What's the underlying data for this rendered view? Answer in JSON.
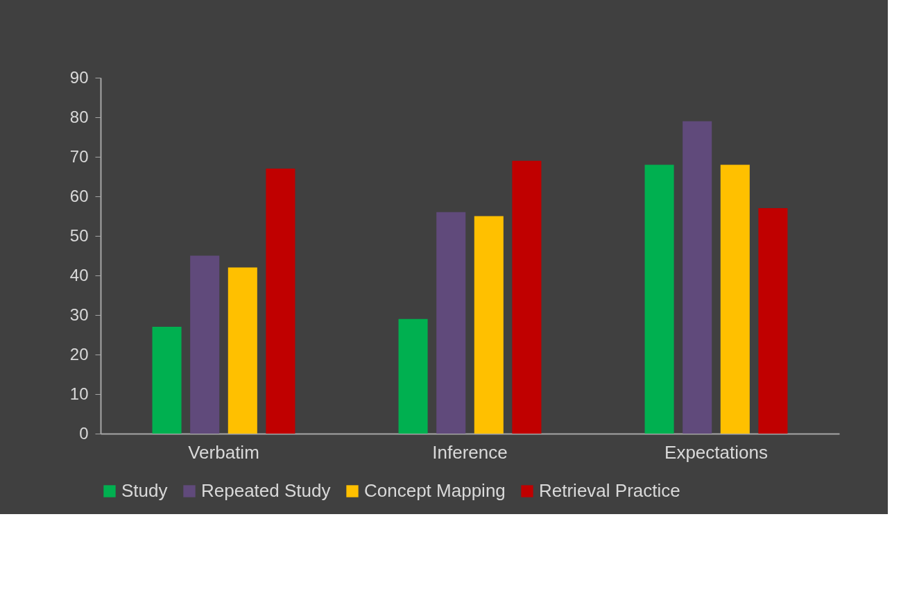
{
  "chart_data": {
    "type": "bar",
    "categories": [
      "Verbatim",
      "Inference",
      "Expectations"
    ],
    "series": [
      {
        "name": "Study",
        "color": "#00b050",
        "values": [
          27,
          29,
          68
        ]
      },
      {
        "name": "Repeated Study",
        "color": "#604a7b",
        "values": [
          45,
          56,
          79
        ]
      },
      {
        "name": "Concept Mapping",
        "color": "#ffc000",
        "values": [
          42,
          55,
          68
        ]
      },
      {
        "name": "Retrieval Practice",
        "color": "#c00000",
        "values": [
          67,
          69,
          57
        ]
      }
    ],
    "ylim": [
      0,
      90
    ],
    "yticks": [
      0,
      10,
      20,
      30,
      40,
      50,
      60,
      70,
      80,
      90
    ],
    "grid": false,
    "legend": "bottom"
  }
}
